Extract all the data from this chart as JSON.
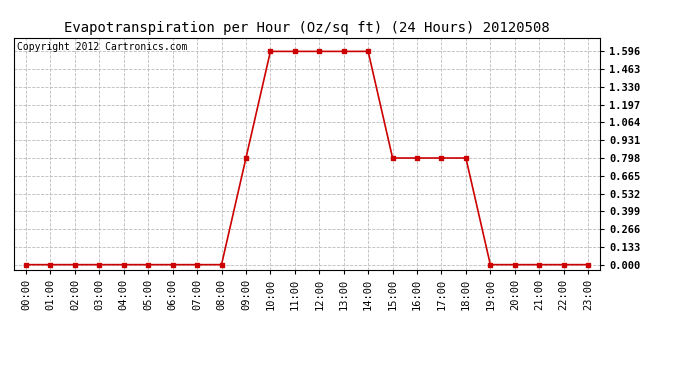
{
  "title": "Evapotranspiration per Hour (Oz/sq ft) (24 Hours) 20120508",
  "copyright_text": "Copyright 2012 Cartronics.com",
  "x_hours": [
    0,
    1,
    2,
    3,
    4,
    5,
    6,
    7,
    8,
    9,
    10,
    11,
    12,
    13,
    14,
    15,
    16,
    17,
    18,
    19,
    20,
    21,
    22,
    23
  ],
  "y_values": [
    0.0,
    0.0,
    0.0,
    0.0,
    0.0,
    0.0,
    0.0,
    0.0,
    0.0,
    0.798,
    1.596,
    1.596,
    1.596,
    1.596,
    1.596,
    0.798,
    0.798,
    0.798,
    0.798,
    0.0,
    0.0,
    0.0,
    0.0,
    0.0
  ],
  "yticks": [
    0.0,
    0.133,
    0.266,
    0.399,
    0.532,
    0.665,
    0.798,
    0.931,
    1.064,
    1.197,
    1.33,
    1.463,
    1.596
  ],
  "line_color": "#cc0000",
  "marker": "s",
  "marker_size": 3,
  "background_color": "#ffffff",
  "plot_bg_color": "#ffffff",
  "grid_color": "#bbbbbb",
  "title_fontsize": 10,
  "tick_fontsize": 7.5,
  "copyright_fontsize": 7,
  "ylim": [
    -0.04,
    1.7
  ],
  "xlim": [
    -0.5,
    23.5
  ]
}
